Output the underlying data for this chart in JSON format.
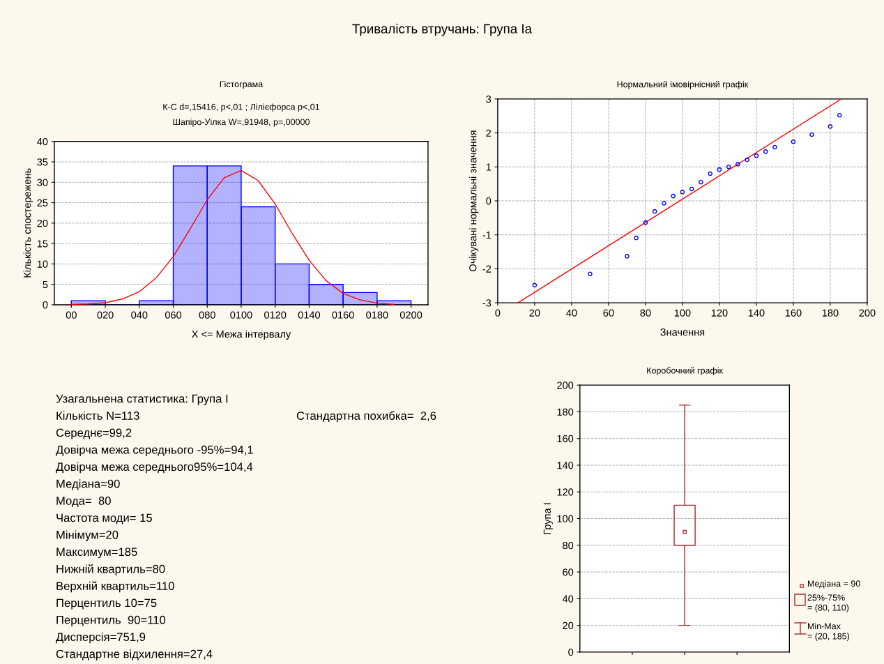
{
  "chart_data": [
    {
      "type": "other",
      "title": "Тривалість втручань: Група Іа"
    },
    {
      "type": "histogram",
      "title": "Гістограма",
      "subtitle": "К-С d=,15416, p<,01 ; Лілієфорса p<,01\nШапіро-Уілка W=,91948, p=,00000",
      "xlabel": "X <= Межа інтервалу",
      "ylabel": "Кількість спостережень",
      "bins": [
        0,
        20,
        40,
        60,
        80,
        100,
        120,
        140,
        160,
        180,
        200
      ],
      "values": [
        1,
        0,
        1,
        34,
        34,
        24,
        10,
        5,
        3,
        1
      ],
      "color": "#0000ff",
      "series": [
        {
          "type": "line",
          "color": "#ff0000",
          "x": [
            0,
            10,
            20,
            30,
            40,
            50,
            60,
            70,
            80,
            90,
            100,
            110,
            120,
            130,
            140,
            150,
            160,
            170,
            180,
            190
          ],
          "values": [
            0.1,
            0.2,
            0.5,
            1.4,
            3.2,
            6.6,
            11.8,
            18.6,
            25.7,
            31.1,
            32.9,
            30.4,
            24.7,
            17.5,
            10.9,
            5.9,
            2.8,
            1.2,
            0.4,
            0.1
          ]
        }
      ],
      "xlim": [
        -10,
        210
      ],
      "xticks": [
        {
          "value": 0,
          "label": "00"
        },
        {
          "value": 20,
          "label": "020"
        },
        {
          "value": 40,
          "label": "040"
        },
        {
          "value": 60,
          "label": "060"
        },
        {
          "value": 80,
          "label": "080"
        },
        {
          "value": 100,
          "label": "0100"
        },
        {
          "value": 120,
          "label": "0120"
        },
        {
          "value": 140,
          "label": "0140"
        },
        {
          "value": 160,
          "label": "0160"
        },
        {
          "value": 180,
          "label": "0180"
        },
        {
          "value": 200,
          "label": "0200"
        }
      ],
      "ylim": [
        0,
        40
      ],
      "yticks": [
        0,
        5,
        10,
        15,
        20,
        25,
        30,
        35,
        40
      ],
      "grid": "y",
      "legend": false
    },
    {
      "type": "scatter",
      "title": "Нормальний імовірнісний графік",
      "xlabel": "Значення",
      "ylabel": "Очікувані нормальні значення",
      "series": [
        {
          "type": "scatter",
          "color": "#0000ff",
          "marker": "circle",
          "x": [
            20,
            50,
            70,
            75,
            80,
            85,
            90,
            95,
            100,
            105,
            110,
            115,
            120,
            125,
            130,
            135,
            140,
            145,
            150,
            160,
            170,
            180,
            185
          ],
          "values": [
            -2.48,
            -2.15,
            -1.63,
            -1.09,
            -0.64,
            -0.31,
            -0.07,
            0.14,
            0.26,
            0.35,
            0.55,
            0.8,
            0.92,
            1.0,
            1.08,
            1.21,
            1.33,
            1.45,
            1.58,
            1.74,
            1.95,
            2.19,
            2.52
          ]
        },
        {
          "type": "line",
          "color": "#ff0000",
          "x": [
            11,
            186
          ],
          "values": [
            -3,
            3
          ]
        }
      ],
      "xlim": [
        0,
        200
      ],
      "xticks": [
        0,
        20,
        40,
        60,
        80,
        100,
        120,
        140,
        160,
        180,
        200
      ],
      "ylim": [
        -3,
        3
      ],
      "yticks": [
        -3,
        -2,
        -1,
        0,
        1,
        2,
        3
      ],
      "grid": true,
      "legend": false
    },
    {
      "type": "other",
      "annotations": [
        "Узагальнена статистика: Група І",
        "Кількість N=113",
        "Стандартна похибка=  2,6",
        "Середнє=99,2",
        "Довірча межа середнього -95%=94,1",
        "Довірча межа середнього95%=104,4",
        "Медіана=90",
        "Мода=  80",
        "Частота моди= 15",
        "Мінімум=20",
        "Максимум=185",
        "Нижній квартиль=80",
        "Верхній квартиль=110",
        "Перцентиль 10=75",
        "Перцентиль  90=110",
        "Дисперсія=751,9",
        "Стандартне відхилення=27,4"
      ]
    },
    {
      "type": "box",
      "title": "Коробочний графік",
      "ylabel": "Група І",
      "categories": [
        null
      ],
      "color": "#a52a2a",
      "boxes": [
        {
          "low": 20,
          "q1": 80,
          "median": 90,
          "q3": 110,
          "high": 185
        }
      ],
      "annotations": [
        "Медіана = 90",
        "25%-75%\n= (80, 110)",
        "Min-Max\n= (20, 185)"
      ],
      "ylim": [
        0,
        200
      ],
      "yticks": [
        0,
        20,
        40,
        60,
        80,
        100,
        120,
        140,
        160,
        180,
        200
      ],
      "grid": "y"
    }
  ]
}
